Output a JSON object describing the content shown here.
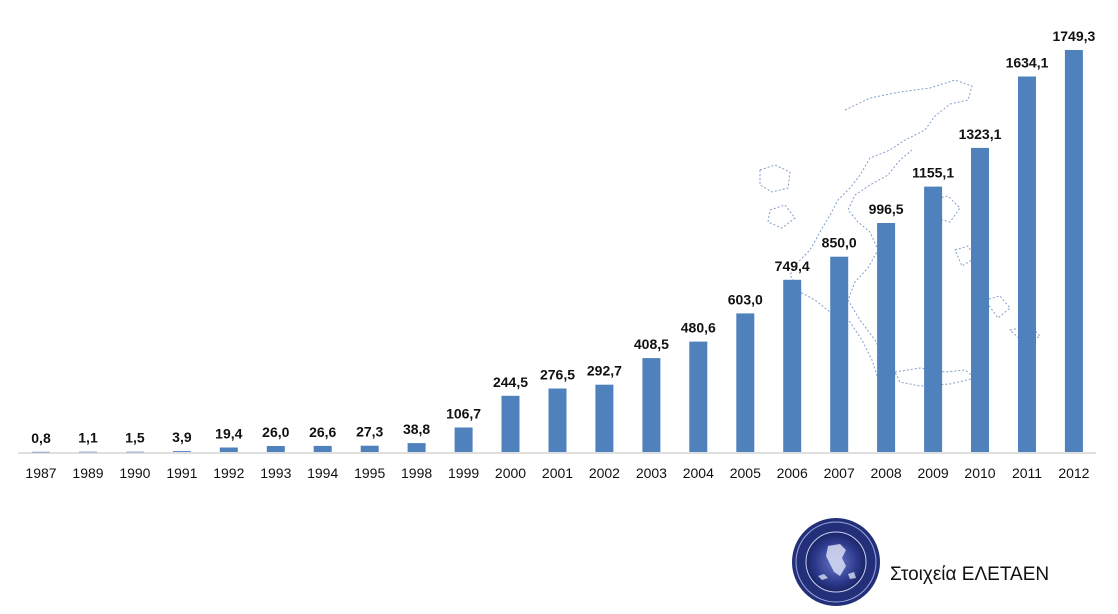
{
  "chart_data": {
    "type": "bar",
    "categories": [
      "1987",
      "1989",
      "1990",
      "1991",
      "1992",
      "1993",
      "1994",
      "1995",
      "1998",
      "1999",
      "2000",
      "2001",
      "2002",
      "2003",
      "2004",
      "2005",
      "2006",
      "2007",
      "2008",
      "2009",
      "2010",
      "2011",
      "2012"
    ],
    "values": [
      0.8,
      1.1,
      1.5,
      3.9,
      19.4,
      26.0,
      26.6,
      27.3,
      38.8,
      106.7,
      244.5,
      276.5,
      292.7,
      408.5,
      480.6,
      603.0,
      749.4,
      850.0,
      996.5,
      1155.1,
      1323.1,
      1634.1,
      1749.3
    ],
    "value_labels": [
      "0,8",
      "1,1",
      "1,5",
      "3,9",
      "19,4",
      "26,0",
      "26,6",
      "27,3",
      "38,8",
      "106,7",
      "244,5",
      "276,5",
      "292,7",
      "408,5",
      "480,6",
      "603,0",
      "749,4",
      "850,0",
      "996,5",
      "1155,1",
      "1323,1",
      "1634,1",
      "1749,3"
    ],
    "bar_color": "#4f81bd",
    "ylim": [
      0,
      1749.3
    ],
    "grid": false,
    "legend": "none"
  },
  "source": {
    "text": "Στοιχεία ΕΛΕΤΑΕΝ",
    "logo_icon": "eletaen-seal-icon"
  },
  "background": {
    "map_icon": "greece-map-watermark-icon",
    "map_color": "#1f4e9c"
  }
}
